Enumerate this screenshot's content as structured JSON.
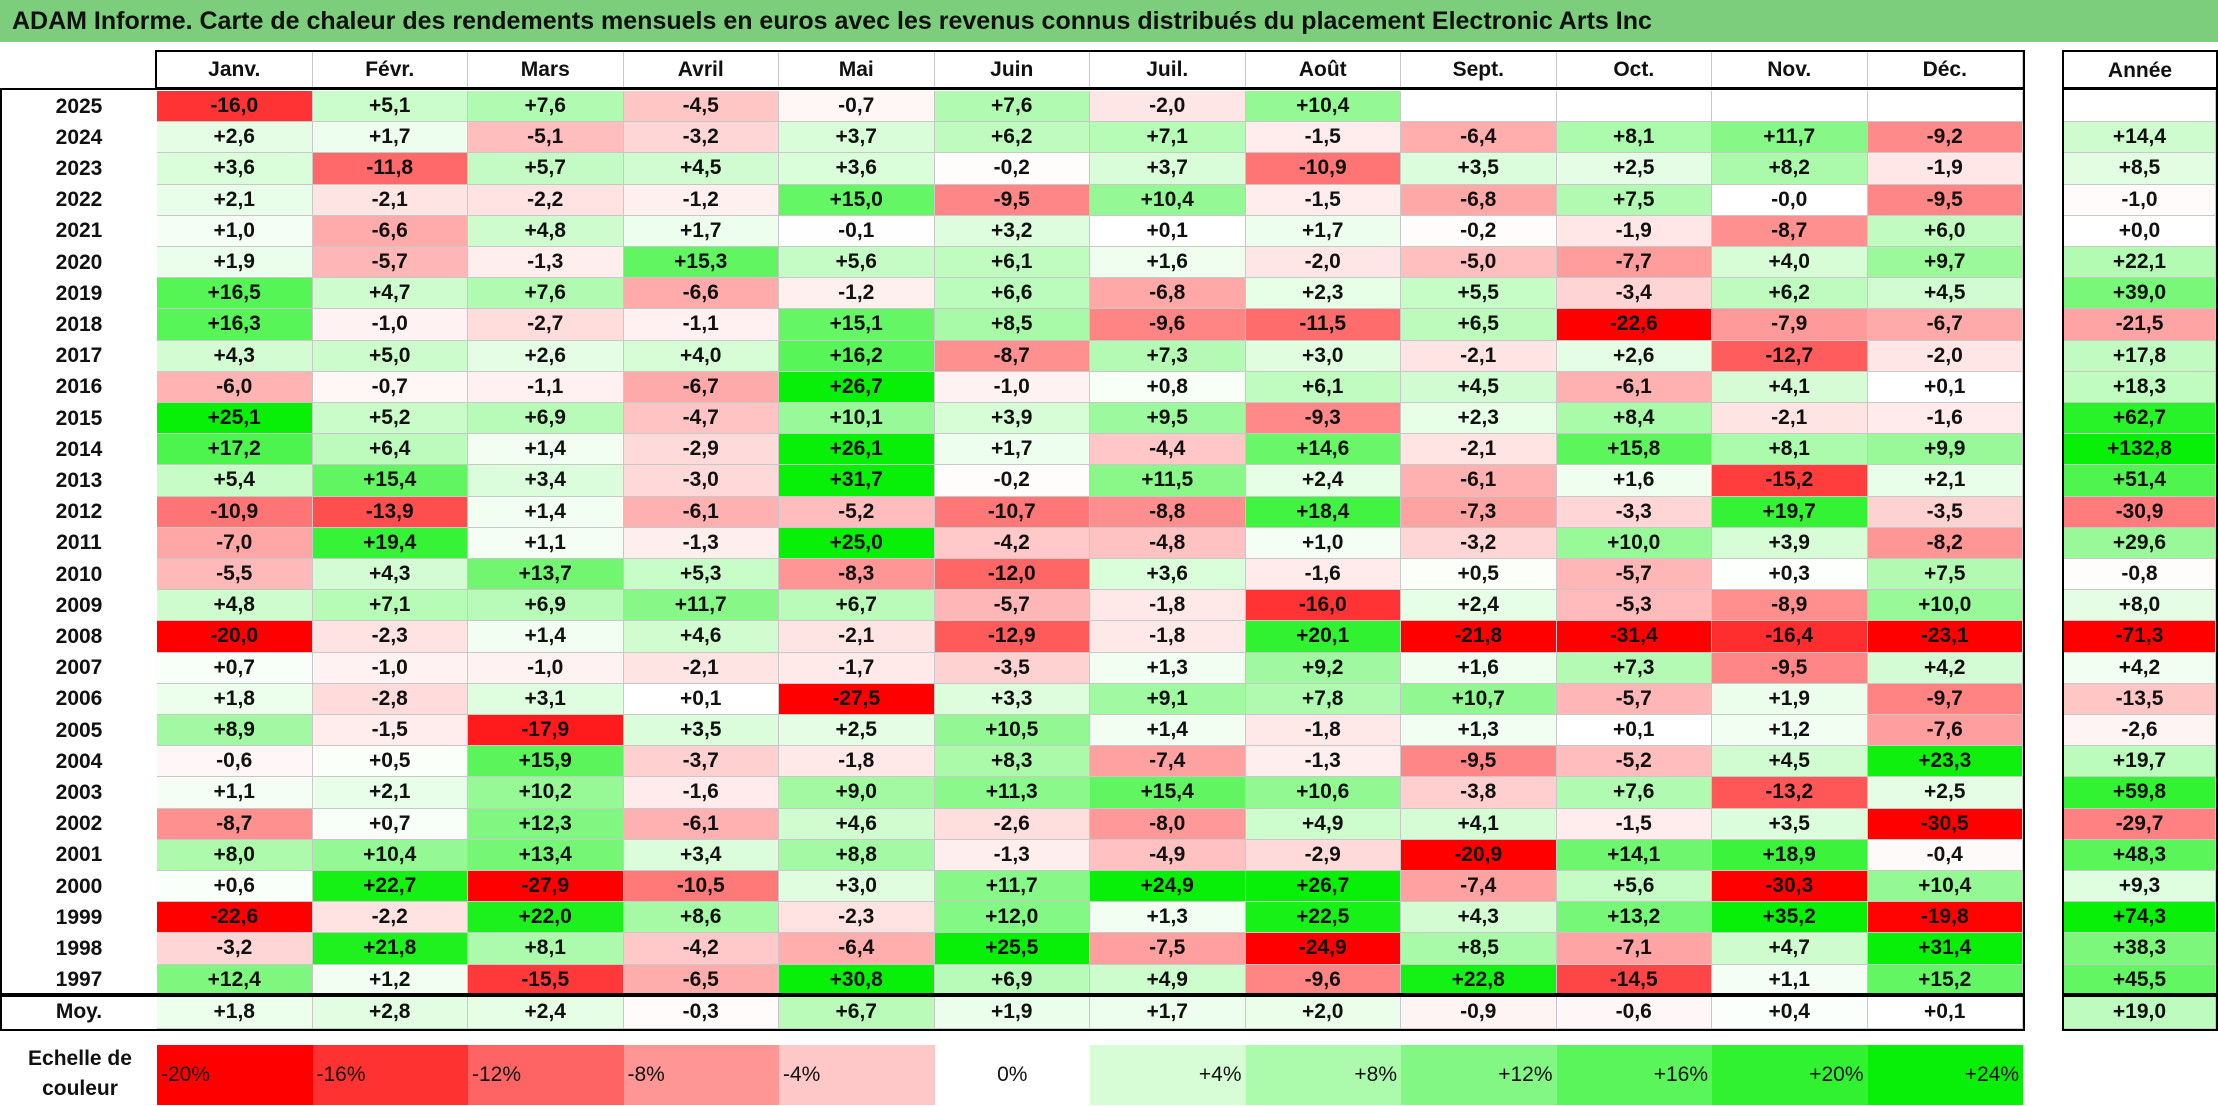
{
  "title": "ADAM Informe. Carte de chaleur des rendements mensuels en euros avec les revenus connus distribués du placement Electronic Arts Inc",
  "chart_data": {
    "type": "heatmap",
    "title": "ADAM Informe. Carte de chaleur des rendements mensuels en euros avec les revenus connus distribués du placement Electronic Arts Inc",
    "columns": [
      "Janv.",
      "Févr.",
      "Mars",
      "Avril",
      "Mai",
      "Juin",
      "Juil.",
      "Août",
      "Sept.",
      "Oct.",
      "Nov.",
      "Déc."
    ],
    "year_column": "Année",
    "rows": [
      {
        "year": "2025",
        "values": [
          "-16,0",
          "+5,1",
          "+7,6",
          "-4,5",
          "-0,7",
          "+7,6",
          "-2,0",
          "+10,4",
          "",
          "",
          "",
          ""
        ],
        "annual": ""
      },
      {
        "year": "2024",
        "values": [
          "+2,6",
          "+1,7",
          "-5,1",
          "-3,2",
          "+3,7",
          "+6,2",
          "+7,1",
          "-1,5",
          "-6,4",
          "+8,1",
          "+11,7",
          "-9,2"
        ],
        "annual": "+14,4"
      },
      {
        "year": "2023",
        "values": [
          "+3,6",
          "-11,8",
          "+5,7",
          "+4,5",
          "+3,6",
          "-0,2",
          "+3,7",
          "-10,9",
          "+3,5",
          "+2,5",
          "+8,2",
          "-1,9"
        ],
        "annual": "+8,5"
      },
      {
        "year": "2022",
        "values": [
          "+2,1",
          "-2,1",
          "-2,2",
          "-1,2",
          "+15,0",
          "-9,5",
          "+10,4",
          "-1,5",
          "-6,8",
          "+7,5",
          "-0,0",
          "-9,5"
        ],
        "annual": "-1,0"
      },
      {
        "year": "2021",
        "values": [
          "+1,0",
          "-6,6",
          "+4,8",
          "+1,7",
          "-0,1",
          "+3,2",
          "+0,1",
          "+1,7",
          "-0,2",
          "-1,9",
          "-8,7",
          "+6,0"
        ],
        "annual": "+0,0"
      },
      {
        "year": "2020",
        "values": [
          "+1,9",
          "-5,7",
          "-1,3",
          "+15,3",
          "+5,6",
          "+6,1",
          "+1,6",
          "-2,0",
          "-5,0",
          "-7,7",
          "+4,0",
          "+9,7"
        ],
        "annual": "+22,1"
      },
      {
        "year": "2019",
        "values": [
          "+16,5",
          "+4,7",
          "+7,6",
          "-6,6",
          "-1,2",
          "+6,6",
          "-6,8",
          "+2,3",
          "+5,5",
          "-3,4",
          "+6,2",
          "+4,5"
        ],
        "annual": "+39,0"
      },
      {
        "year": "2018",
        "values": [
          "+16,3",
          "-1,0",
          "-2,7",
          "-1,1",
          "+15,1",
          "+8,5",
          "-9,6",
          "-11,5",
          "+6,5",
          "-22,6",
          "-7,9",
          "-6,7"
        ],
        "annual": "-21,5"
      },
      {
        "year": "2017",
        "values": [
          "+4,3",
          "+5,0",
          "+2,6",
          "+4,0",
          "+16,2",
          "-8,7",
          "+7,3",
          "+3,0",
          "-2,1",
          "+2,6",
          "-12,7",
          "-2,0"
        ],
        "annual": "+17,8"
      },
      {
        "year": "2016",
        "values": [
          "-6,0",
          "-0,7",
          "-1,1",
          "-6,7",
          "+26,7",
          "-1,0",
          "+0,8",
          "+6,1",
          "+4,5",
          "-6,1",
          "+4,1",
          "+0,1"
        ],
        "annual": "+18,3"
      },
      {
        "year": "2015",
        "values": [
          "+25,1",
          "+5,2",
          "+6,9",
          "-4,7",
          "+10,1",
          "+3,9",
          "+9,5",
          "-9,3",
          "+2,3",
          "+8,4",
          "-2,1",
          "-1,6"
        ],
        "annual": "+62,7"
      },
      {
        "year": "2014",
        "values": [
          "+17,2",
          "+6,4",
          "+1,4",
          "-2,9",
          "+26,1",
          "+1,7",
          "-4,4",
          "+14,6",
          "-2,1",
          "+15,8",
          "+8,1",
          "+9,9"
        ],
        "annual": "+132,8"
      },
      {
        "year": "2013",
        "values": [
          "+5,4",
          "+15,4",
          "+3,4",
          "-3,0",
          "+31,7",
          "-0,2",
          "+11,5",
          "+2,4",
          "-6,1",
          "+1,6",
          "-15,2",
          "+2,1"
        ],
        "annual": "+51,4"
      },
      {
        "year": "2012",
        "values": [
          "-10,9",
          "-13,9",
          "+1,4",
          "-6,1",
          "-5,2",
          "-10,7",
          "-8,8",
          "+18,4",
          "-7,3",
          "-3,3",
          "+19,7",
          "-3,5"
        ],
        "annual": "-30,9"
      },
      {
        "year": "2011",
        "values": [
          "-7,0",
          "+19,4",
          "+1,1",
          "-1,3",
          "+25,0",
          "-4,2",
          "-4,8",
          "+1,0",
          "-3,2",
          "+10,0",
          "+3,9",
          "-8,2"
        ],
        "annual": "+29,6"
      },
      {
        "year": "2010",
        "values": [
          "-5,5",
          "+4,3",
          "+13,7",
          "+5,3",
          "-8,3",
          "-12,0",
          "+3,6",
          "-1,6",
          "+0,5",
          "-5,7",
          "+0,3",
          "+7,5"
        ],
        "annual": "-0,8"
      },
      {
        "year": "2009",
        "values": [
          "+4,8",
          "+7,1",
          "+6,9",
          "+11,7",
          "+6,7",
          "-5,7",
          "-1,8",
          "-16,0",
          "+2,4",
          "-5,3",
          "-8,9",
          "+10,0"
        ],
        "annual": "+8,0"
      },
      {
        "year": "2008",
        "values": [
          "-20,0",
          "-2,3",
          "+1,4",
          "+4,6",
          "-2,1",
          "-12,9",
          "-1,8",
          "+20,1",
          "-21,8",
          "-31,4",
          "-16,4",
          "-23,1"
        ],
        "annual": "-71,3"
      },
      {
        "year": "2007",
        "values": [
          "+0,7",
          "-1,0",
          "-1,0",
          "-2,1",
          "-1,7",
          "-3,5",
          "+1,3",
          "+9,2",
          "+1,6",
          "+7,3",
          "-9,5",
          "+4,2"
        ],
        "annual": "+4,2"
      },
      {
        "year": "2006",
        "values": [
          "+1,8",
          "-2,8",
          "+3,1",
          "+0,1",
          "-27,5",
          "+3,3",
          "+9,1",
          "+7,8",
          "+10,7",
          "-5,7",
          "+1,9",
          "-9,7"
        ],
        "annual": "-13,5"
      },
      {
        "year": "2005",
        "values": [
          "+8,9",
          "-1,5",
          "-17,9",
          "+3,5",
          "+2,5",
          "+10,5",
          "+1,4",
          "-1,8",
          "+1,3",
          "+0,1",
          "+1,2",
          "-7,6"
        ],
        "annual": "-2,6"
      },
      {
        "year": "2004",
        "values": [
          "-0,6",
          "+0,5",
          "+15,9",
          "-3,7",
          "-1,8",
          "+8,3",
          "-7,4",
          "-1,3",
          "-9,5",
          "-5,2",
          "+4,5",
          "+23,3"
        ],
        "annual": "+19,7"
      },
      {
        "year": "2003",
        "values": [
          "+1,1",
          "+2,1",
          "+10,2",
          "-1,6",
          "+9,0",
          "+11,3",
          "+15,4",
          "+10,6",
          "-3,8",
          "+7,6",
          "-13,2",
          "+2,5"
        ],
        "annual": "+59,8"
      },
      {
        "year": "2002",
        "values": [
          "-8,7",
          "+0,7",
          "+12,3",
          "-6,1",
          "+4,6",
          "-2,6",
          "-8,0",
          "+4,9",
          "+4,1",
          "-1,5",
          "+3,5",
          "-30,5"
        ],
        "annual": "-29,7"
      },
      {
        "year": "2001",
        "values": [
          "+8,0",
          "+10,4",
          "+13,4",
          "+3,4",
          "+8,8",
          "-1,3",
          "-4,9",
          "-2,9",
          "-20,9",
          "+14,1",
          "+18,9",
          "-0,4"
        ],
        "annual": "+48,3"
      },
      {
        "year": "2000",
        "values": [
          "+0,6",
          "+22,7",
          "-27,9",
          "-10,5",
          "+3,0",
          "+11,7",
          "+24,9",
          "+26,7",
          "-7,4",
          "+5,6",
          "-30,3",
          "+10,4"
        ],
        "annual": "+9,3"
      },
      {
        "year": "1999",
        "values": [
          "-22,6",
          "-2,2",
          "+22,0",
          "+8,6",
          "-2,3",
          "+12,0",
          "+1,3",
          "+22,5",
          "+4,3",
          "+13,2",
          "+35,2",
          "-19,8"
        ],
        "annual": "+74,3"
      },
      {
        "year": "1998",
        "values": [
          "-3,2",
          "+21,8",
          "+8,1",
          "-4,2",
          "-6,4",
          "+25,5",
          "-7,5",
          "-24,9",
          "+8,5",
          "-7,1",
          "+4,7",
          "+31,4"
        ],
        "annual": "+38,3"
      },
      {
        "year": "1997",
        "values": [
          "+12,4",
          "+1,2",
          "-15,5",
          "-6,5",
          "+30,8",
          "+6,9",
          "+4,9",
          "-9,6",
          "+22,8",
          "-14,5",
          "+1,1",
          "+15,2"
        ],
        "annual": "+45,5"
      }
    ],
    "average": {
      "label": "Moy.",
      "values": [
        "+1,8",
        "+2,8",
        "+2,4",
        "-0,3",
        "+6,7",
        "+1,9",
        "+1,7",
        "+2,0",
        "-0,9",
        "-0,6",
        "+0,4",
        "+0,1"
      ],
      "annual": "+19,0"
    },
    "color_scale": {
      "label": "Echelle de\ncouleur",
      "stops": [
        {
          "text": "-20%",
          "value": -20,
          "color": "#ff0000",
          "align": "left"
        },
        {
          "text": "-16%",
          "value": -16,
          "color": "#ff3232",
          "align": "left"
        },
        {
          "text": "-12%",
          "value": -12,
          "color": "#ff6464",
          "align": "left"
        },
        {
          "text": "-8%",
          "value": -8,
          "color": "#ff9696",
          "align": "left"
        },
        {
          "text": "-4%",
          "value": -4,
          "color": "#ffc8c8",
          "align": "left"
        },
        {
          "text": "0%",
          "value": 0,
          "color": "#ffffff",
          "align": "center"
        },
        {
          "text": "+4%",
          "value": 4,
          "color": "#d6fdd6",
          "align": "right"
        },
        {
          "text": "+8%",
          "value": 8,
          "color": "#acfaac",
          "align": "right"
        },
        {
          "text": "+12%",
          "value": 12,
          "color": "#83f783",
          "align": "right"
        },
        {
          "text": "+16%",
          "value": 16,
          "color": "#5af55a",
          "align": "right"
        },
        {
          "text": "+20%",
          "value": 20,
          "color": "#31f231",
          "align": "right"
        },
        {
          "text": "+24%",
          "value": 24,
          "color": "#08f008",
          "align": "right"
        }
      ]
    }
  }
}
